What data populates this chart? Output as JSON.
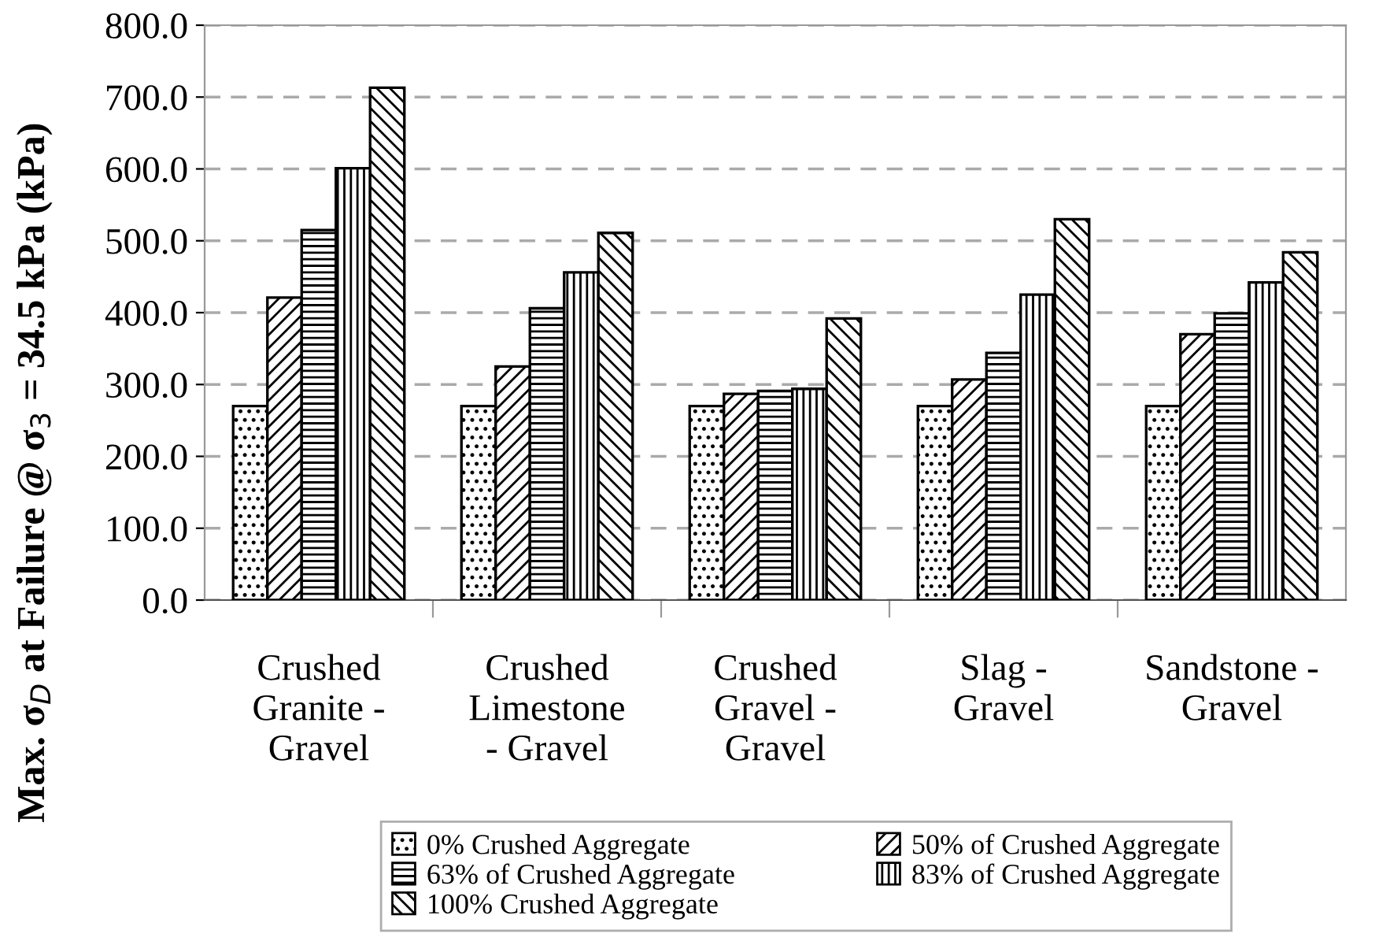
{
  "chart_data": {
    "type": "bar",
    "ylabel": "Max. σ$_{D}$ at Failure @ σ$_{3}$ = 34.5 kPa (kPa)",
    "categories": [
      "Crushed\nGranite -\nGravel",
      "Crushed\nLimestone\n- Gravel",
      "Crushed\nGravel -\nGravel",
      "Slag -\nGravel",
      "Sandstone -\nGravel"
    ],
    "series": [
      {
        "name": "0% Crushed Aggregate",
        "values": [
          270,
          270,
          270,
          270,
          270
        ]
      },
      {
        "name": "50% of Crushed Aggregate",
        "values": [
          421,
          325,
          287,
          307,
          370
        ]
      },
      {
        "name": "63% of Crushed Aggregate",
        "values": [
          515,
          406,
          291,
          344,
          399
        ]
      },
      {
        "name": "83% of Crushed Aggregate",
        "values": [
          601,
          456,
          294,
          425,
          442
        ]
      },
      {
        "name": "100% Crushed Aggregate",
        "values": [
          713,
          511,
          392,
          530,
          484
        ]
      }
    ],
    "ylim": [
      0,
      800
    ],
    "yticks": [
      {
        "value": 0,
        "label": "0.0"
      },
      {
        "value": 100,
        "label": "100.0"
      },
      {
        "value": 200,
        "label": "200.0"
      },
      {
        "value": 300,
        "label": "300.0"
      },
      {
        "value": 400,
        "label": "400.0"
      },
      {
        "value": 500,
        "label": "500.0"
      },
      {
        "value": 600,
        "label": "600.0"
      },
      {
        "value": 700,
        "label": "700.0"
      },
      {
        "value": 800,
        "label": "800.0"
      }
    ],
    "grid": "y",
    "legend": "bottom"
  }
}
